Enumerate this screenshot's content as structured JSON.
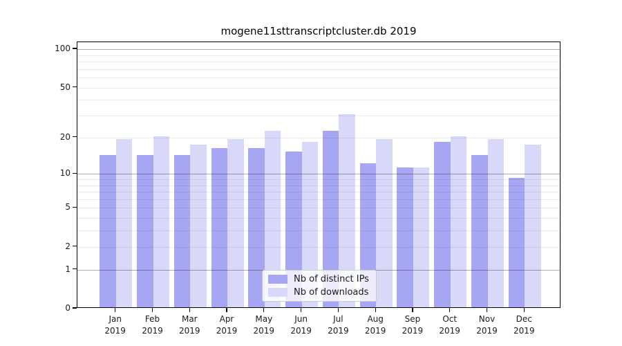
{
  "title": "mogene11sttranscriptcluster.db 2019",
  "legend": {
    "items": [
      {
        "label": "Nb of distinct IPs",
        "color": "#a6a6f3"
      },
      {
        "label": "Nb of downloads",
        "color": "#d8d8f9"
      }
    ]
  },
  "axes": {
    "y_tick_labels": [
      0,
      1,
      2,
      5,
      10,
      20,
      50,
      100
    ],
    "y_major_gridlines": [
      1,
      10,
      100
    ],
    "y_minor_gridlines": [
      2,
      3,
      4,
      5,
      6,
      7,
      8,
      9,
      20,
      30,
      40,
      50,
      60,
      70,
      80,
      90
    ],
    "x_year_line": "2019"
  },
  "chart_data": {
    "type": "bar",
    "scale": "log10(1+x)",
    "title": "mogene11sttranscriptcluster.db 2019",
    "xlabel": "",
    "ylabel": "",
    "ylim": [
      0,
      100
    ],
    "grid": true,
    "legend_position": "bottom-center",
    "categories": [
      "Jan 2019",
      "Feb 2019",
      "Mar 2019",
      "Apr 2019",
      "May 2019",
      "Jun 2019",
      "Jul 2019",
      "Aug 2019",
      "Sep 2019",
      "Oct 2019",
      "Nov 2019",
      "Dec 2019"
    ],
    "series": [
      {
        "name": "Nb of distinct IPs",
        "color": "#a6a6f3",
        "values": [
          14,
          14,
          14,
          16,
          16,
          15,
          22,
          12,
          11,
          18,
          14,
          9
        ]
      },
      {
        "name": "Nb of downloads",
        "color": "#d8d8f9",
        "values": [
          19,
          20,
          17,
          19,
          22,
          18,
          30,
          19,
          11,
          20,
          19,
          17
        ]
      }
    ]
  }
}
